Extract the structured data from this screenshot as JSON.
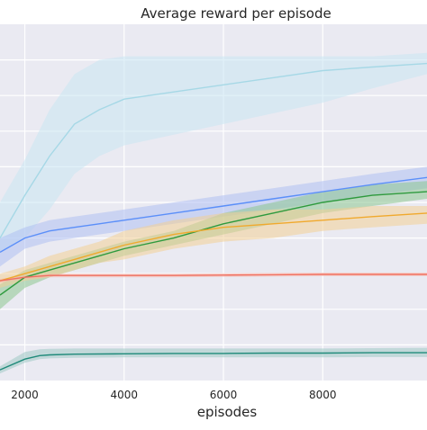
{
  "chart_data": {
    "type": "line",
    "title": "Average reward per episode",
    "xlabel": "episodes",
    "ylabel": "",
    "xlim": [
      1500,
      10100
    ],
    "ylim": [
      0,
      100
    ],
    "x_ticks": [
      2000,
      4000,
      6000,
      8000
    ],
    "y_ticks": [
      10,
      20,
      30,
      40,
      50,
      60,
      70,
      80,
      90
    ],
    "grid": true,
    "style": "darkgrid",
    "colors": {
      "background": "#eaeaf2",
      "grid": "#ffffff",
      "text": "#262626"
    },
    "series": [
      {
        "color": "#a6d8e6",
        "band_color": "#c9e6f2",
        "x": [
          1500,
          2000,
          2500,
          3000,
          3500,
          4000,
          5000,
          6000,
          7000,
          8000,
          9000,
          10100
        ],
        "values": [
          40,
          52,
          63,
          72,
          76,
          79,
          81,
          83,
          85,
          87,
          88,
          89
        ],
        "upper": [
          50,
          62,
          76,
          86,
          90,
          91,
          91,
          91,
          91,
          91,
          91,
          92
        ],
        "lower": [
          36,
          40,
          48,
          58,
          63,
          66,
          69,
          72,
          75,
          78,
          82,
          86
        ]
      },
      {
        "color": "#5b8ff9",
        "band_color": "#aebff2",
        "x": [
          1500,
          2000,
          2500,
          3000,
          3500,
          4000,
          5000,
          6000,
          7000,
          8000,
          9000,
          10100
        ],
        "values": [
          36,
          40,
          42,
          43,
          44,
          45,
          47,
          49,
          51,
          53,
          55,
          57
        ],
        "upper": [
          40,
          43,
          45,
          46,
          47,
          48,
          50,
          52,
          54,
          56,
          58,
          60
        ],
        "lower": [
          32,
          37,
          39,
          40,
          41,
          42,
          44,
          46,
          48,
          50,
          52,
          54
        ]
      },
      {
        "color": "#2e9a3e",
        "band_color": "#8cc68f",
        "x": [
          1500,
          2000,
          2500,
          3000,
          3500,
          4000,
          5000,
          6000,
          7000,
          8000,
          9000,
          10100
        ],
        "values": [
          24,
          29,
          31,
          33,
          35,
          37,
          40,
          44,
          47,
          50,
          52,
          53
        ],
        "upper": [
          27,
          31,
          33,
          35,
          37,
          39,
          42,
          47,
          50,
          53,
          55,
          56
        ],
        "lower": [
          20,
          26,
          29,
          31,
          33,
          35,
          38,
          41,
          44,
          47,
          49,
          51
        ]
      },
      {
        "color": "#f0a92d",
        "band_color": "#f3cf95",
        "x": [
          1500,
          2000,
          2500,
          3000,
          3500,
          4000,
          5000,
          6000,
          7000,
          8000,
          9000,
          10100
        ],
        "values": [
          28,
          30,
          32,
          34,
          36,
          38,
          41,
          43,
          44,
          45,
          46,
          47
        ],
        "upper": [
          30,
          32,
          35,
          37,
          39,
          42,
          45,
          47,
          48,
          48,
          49,
          49
        ],
        "lower": [
          26,
          28,
          29,
          31,
          33,
          34,
          37,
          39,
          40,
          42,
          43,
          44
        ]
      },
      {
        "color": "#f07060",
        "band_color": "#f6b4aa",
        "x": [
          1500,
          2000,
          2500,
          3000,
          4000,
          5000,
          6000,
          7000,
          8000,
          9000,
          10100
        ],
        "values": [
          28,
          29,
          29.5,
          29.5,
          29.5,
          29.5,
          29.6,
          29.7,
          29.8,
          29.8,
          29.8
        ],
        "upper": [
          28.5,
          29.5,
          30,
          30,
          30,
          30,
          30.1,
          30.2,
          30.3,
          30.3,
          30.3
        ],
        "lower": [
          27.5,
          28.5,
          29,
          29,
          29,
          29,
          29.1,
          29.2,
          29.3,
          29.3,
          29.3
        ]
      },
      {
        "color": "#1f8a7a",
        "band_color": "#9ec9c4",
        "x": [
          1500,
          2000,
          2300,
          2500,
          3000,
          4000,
          5000,
          6000,
          7000,
          8000,
          9000,
          10100
        ],
        "values": [
          3,
          6,
          7,
          7.2,
          7.4,
          7.5,
          7.6,
          7.6,
          7.7,
          7.7,
          7.8,
          7.8
        ],
        "upper": [
          4,
          8,
          8.8,
          8.9,
          9,
          9,
          9,
          9,
          9,
          9,
          9.1,
          9.2
        ],
        "lower": [
          2,
          5,
          6,
          6.2,
          6.4,
          6.5,
          6.5,
          6.5,
          6.5,
          6.5,
          6.6,
          6.6
        ]
      }
    ]
  }
}
